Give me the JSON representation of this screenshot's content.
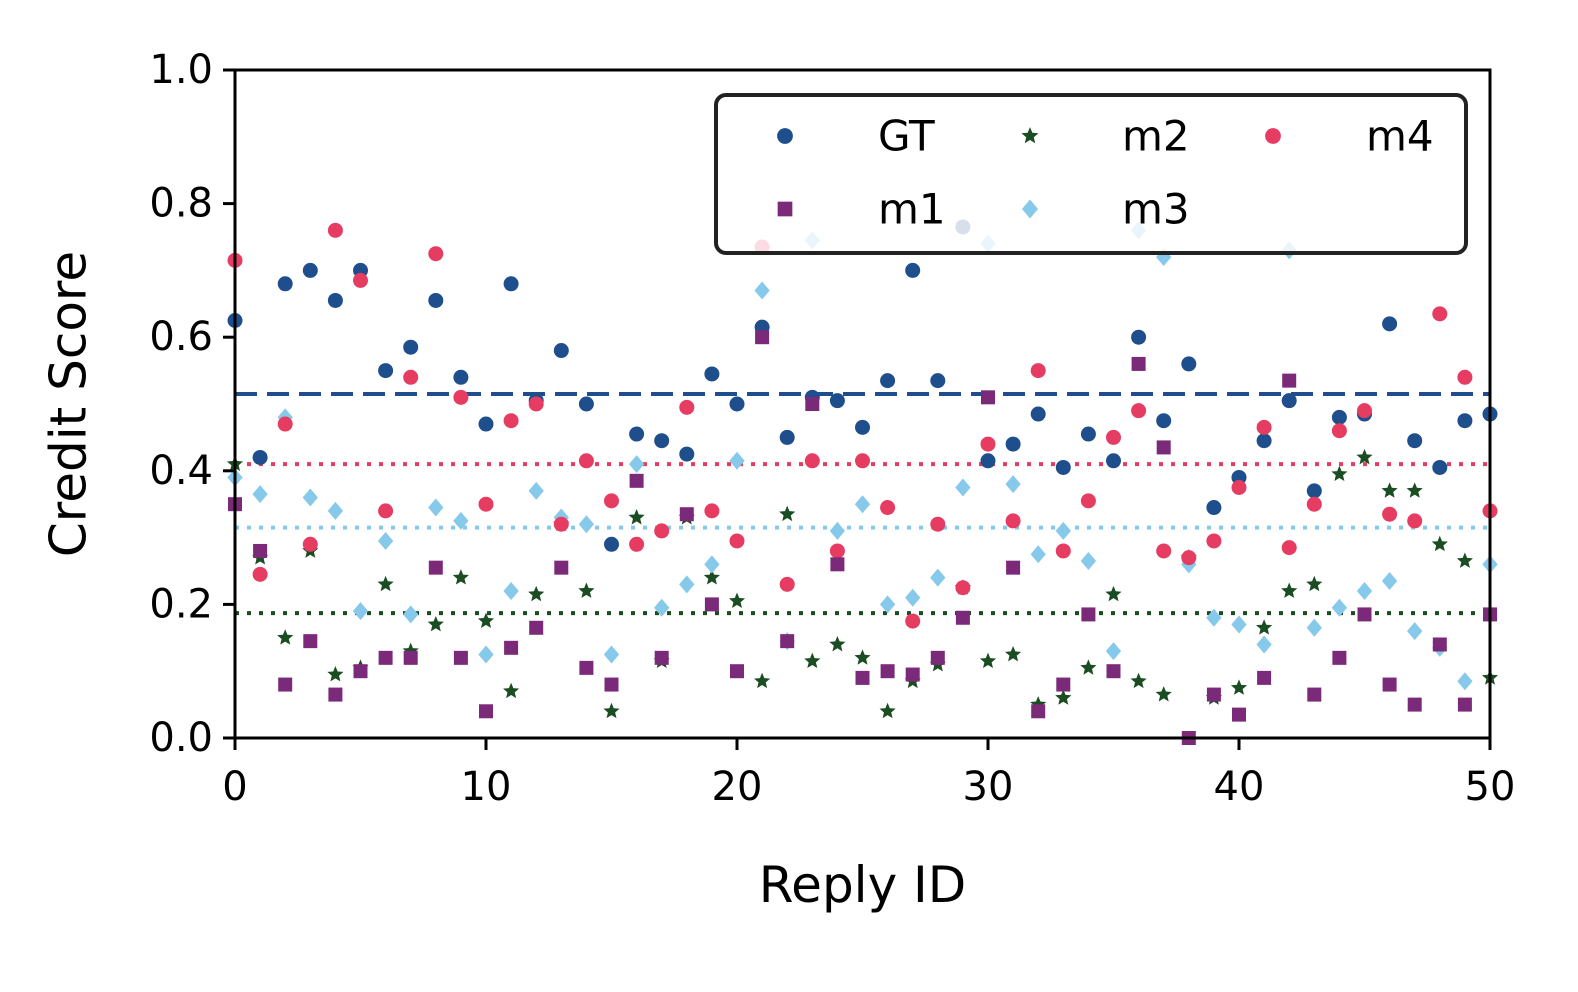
{
  "chart_data": {
    "type": "scatter",
    "xlabel": "Reply ID",
    "ylabel": "Credit Score",
    "xlim": [
      0,
      50
    ],
    "ylim": [
      0.0,
      1.0
    ],
    "xticks": [
      0,
      10,
      20,
      30,
      40,
      50
    ],
    "xtick_labels": [
      "0",
      "10",
      "20",
      "30",
      "40",
      "50"
    ],
    "yticks": [
      0.0,
      0.2,
      0.4,
      0.6,
      0.8,
      1.0
    ],
    "ytick_labels": [
      "0.0",
      "0.2",
      "0.4",
      "0.6",
      "0.8",
      "1.0"
    ],
    "grid": false,
    "legend": {
      "placement": "top-right",
      "columns": 3
    },
    "x": [
      0,
      1,
      2,
      3,
      4,
      5,
      6,
      7,
      8,
      9,
      10,
      11,
      12,
      13,
      14,
      15,
      16,
      17,
      18,
      19,
      20,
      21,
      22,
      23,
      24,
      25,
      26,
      27,
      28,
      29,
      30,
      31,
      32,
      33,
      34,
      35,
      36,
      37,
      38,
      39,
      40,
      41,
      42,
      43,
      44,
      45,
      46,
      47,
      48,
      49,
      50
    ],
    "series": [
      {
        "name": "GT",
        "marker": "circle",
        "color": "#1f4e8c",
        "mean": 0.515,
        "mean_style": "dashed",
        "values": [
          0.625,
          0.42,
          0.68,
          0.7,
          0.655,
          0.7,
          0.55,
          0.585,
          0.655,
          0.54,
          0.47,
          0.68,
          0.505,
          0.58,
          0.5,
          0.29,
          0.455,
          0.445,
          0.425,
          0.545,
          0.5,
          0.615,
          0.45,
          0.51,
          0.505,
          0.465,
          0.535,
          0.7,
          0.535,
          0.765,
          0.415,
          0.44,
          0.485,
          0.405,
          0.455,
          0.415,
          0.6,
          0.475,
          0.56,
          0.345,
          0.39,
          0.445,
          0.505,
          0.37,
          0.48,
          0.485,
          0.62,
          0.445,
          0.405,
          0.475,
          0.485
        ]
      },
      {
        "name": "m1",
        "marker": "square",
        "color": "#7b2a7a",
        "mean": 0.185,
        "mean_style": "none",
        "values": [
          0.35,
          0.28,
          0.08,
          0.145,
          0.065,
          0.1,
          0.12,
          0.12,
          0.255,
          0.12,
          0.04,
          0.135,
          0.165,
          0.255,
          0.105,
          0.08,
          0.385,
          0.12,
          0.335,
          0.2,
          0.1,
          0.6,
          0.145,
          0.5,
          0.26,
          0.09,
          0.1,
          0.095,
          0.12,
          0.18,
          0.51,
          0.255,
          0.04,
          0.08,
          0.185,
          0.1,
          0.56,
          0.435,
          0.0,
          0.065,
          0.035,
          0.09,
          0.535,
          0.065,
          0.12,
          0.185,
          0.08,
          0.05,
          0.14,
          0.05,
          0.185
        ]
      },
      {
        "name": "m2",
        "marker": "star",
        "color": "#1a4d22",
        "mean": 0.187,
        "mean_style": "dotted",
        "values": [
          0.41,
          0.27,
          0.15,
          0.28,
          0.095,
          0.105,
          0.23,
          0.13,
          0.17,
          0.24,
          0.175,
          0.07,
          0.215,
          0.32,
          0.22,
          0.04,
          0.33,
          0.115,
          0.33,
          0.24,
          0.205,
          0.085,
          0.335,
          0.115,
          0.14,
          0.12,
          0.04,
          0.085,
          0.11,
          0.225,
          0.115,
          0.125,
          0.05,
          0.06,
          0.105,
          0.215,
          0.085,
          0.065,
          0.27,
          0.06,
          0.075,
          0.165,
          0.22,
          0.23,
          0.395,
          0.42,
          0.37,
          0.37,
          0.29,
          0.265,
          0.09
        ]
      },
      {
        "name": "m3",
        "marker": "diamond",
        "color": "#86c9ea",
        "mean": 0.315,
        "mean_style": "dotted",
        "values": [
          0.39,
          0.365,
          0.48,
          0.36,
          0.34,
          0.19,
          0.295,
          0.185,
          0.345,
          0.325,
          0.125,
          0.22,
          0.37,
          0.33,
          0.32,
          0.125,
          0.41,
          0.195,
          0.23,
          0.26,
          0.415,
          0.67,
          0.145,
          0.745,
          0.31,
          0.35,
          0.2,
          0.21,
          0.24,
          0.375,
          0.74,
          0.38,
          0.275,
          0.31,
          0.265,
          0.13,
          0.76,
          0.72,
          0.26,
          0.18,
          0.17,
          0.14,
          0.73,
          0.165,
          0.195,
          0.22,
          0.235,
          0.16,
          0.135,
          0.085,
          0.26
        ]
      },
      {
        "name": "m4",
        "marker": "circle",
        "color": "#e63c62",
        "mean": 0.41,
        "mean_style": "dotted",
        "values": [
          0.715,
          0.245,
          0.47,
          0.29,
          0.76,
          0.685,
          0.34,
          0.54,
          0.725,
          0.51,
          0.35,
          0.475,
          0.5,
          0.32,
          0.415,
          0.355,
          0.29,
          0.31,
          0.495,
          0.34,
          0.295,
          0.735,
          0.23,
          0.415,
          0.28,
          0.415,
          0.345,
          0.175,
          0.32,
          0.225,
          0.44,
          0.325,
          0.55,
          0.28,
          0.355,
          0.45,
          0.49,
          0.28,
          0.27,
          0.295,
          0.375,
          0.465,
          0.285,
          0.35,
          0.46,
          0.49,
          0.335,
          0.325,
          0.635,
          0.54,
          0.34
        ]
      }
    ]
  }
}
